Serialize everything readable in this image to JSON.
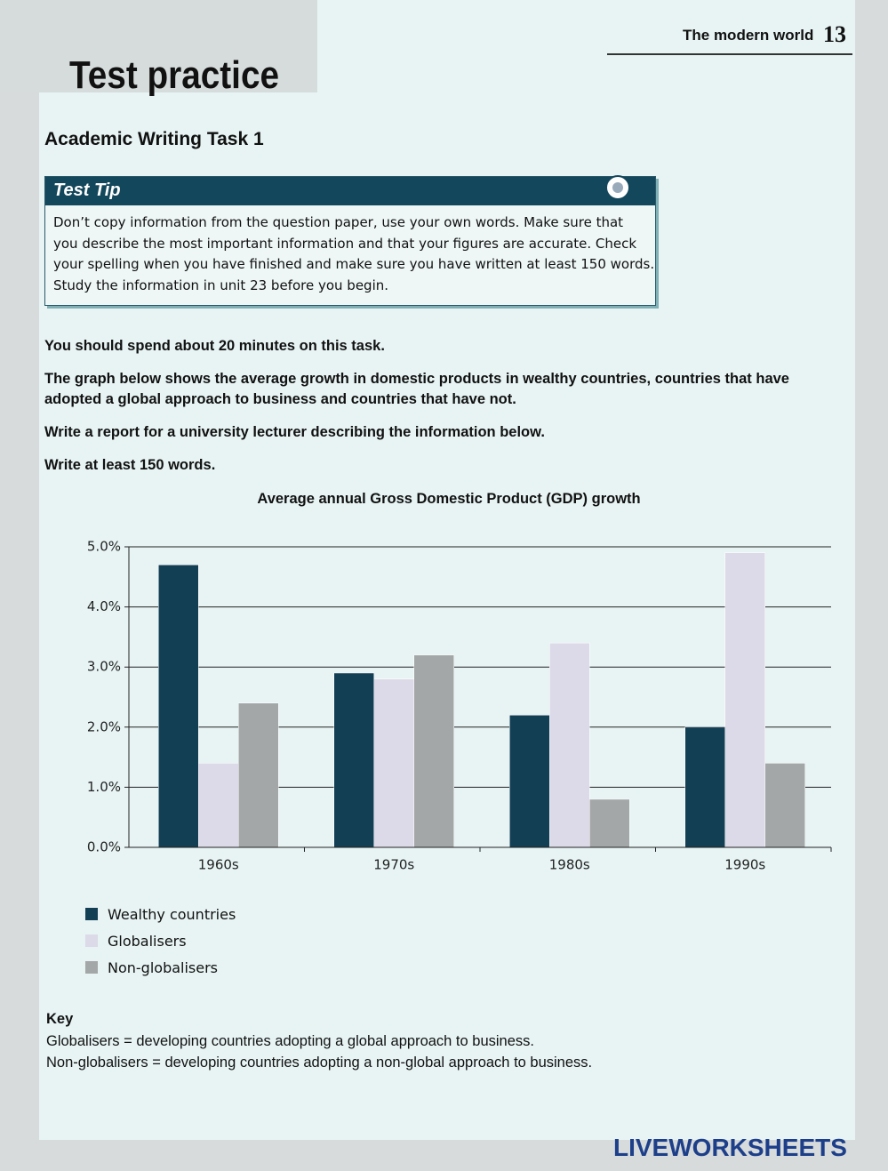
{
  "header": {
    "section": "The modern world",
    "unit": "13"
  },
  "title": "Test practice",
  "subtitle": "Academic Writing Task 1",
  "tip": {
    "heading": "Test Tip",
    "lines": [
      "Don’t copy information from the question paper, use your own words. Make sure that",
      "you describe the most important information and that your figures are accurate. Check",
      "your spelling when you have finished and make sure you have written at least 150 words.",
      "Study the information in unit 23 before you begin."
    ]
  },
  "instructions": [
    "You should spend about 20 minutes on this task.",
    "The graph below shows the average growth in domestic products in wealthy countries, countries that have adopted a global approach to business and countries that have not.",
    "Write a report for a university lecturer describing the information below.",
    "Write at least 150 words."
  ],
  "chart_data": {
    "type": "bar",
    "title": "Average annual Gross Domestic Product (GDP) growth",
    "categories": [
      "1960s",
      "1970s",
      "1980s",
      "1990s"
    ],
    "series": [
      {
        "name": "Wealthy countries",
        "color": "#133f55",
        "values": [
          4.7,
          2.9,
          2.2,
          2.0
        ]
      },
      {
        "name": "Globalisers",
        "color": "#dcd9e8",
        "values": [
          1.4,
          2.8,
          3.4,
          4.9
        ]
      },
      {
        "name": "Non-globalisers",
        "color": "#a4a7a7",
        "values": [
          2.4,
          3.2,
          0.8,
          1.4
        ]
      }
    ],
    "ylim": [
      0,
      5
    ],
    "yticks": [
      {
        "value": 0,
        "label": "0.0%"
      },
      {
        "value": 1,
        "label": "1.0%"
      },
      {
        "value": 2,
        "label": "2.0%"
      },
      {
        "value": 3,
        "label": "3.0%"
      },
      {
        "value": 4,
        "label": "4.0%"
      },
      {
        "value": 5,
        "label": "5.0%"
      }
    ],
    "grid": true
  },
  "key": {
    "heading": "Key",
    "lines": [
      "Globalisers = developing countries adopting a global approach to business.",
      "Non-globalisers = developing countries adopting a non-global approach to business."
    ]
  },
  "footer": {
    "logo": "LIVEWORKSHEETS"
  }
}
